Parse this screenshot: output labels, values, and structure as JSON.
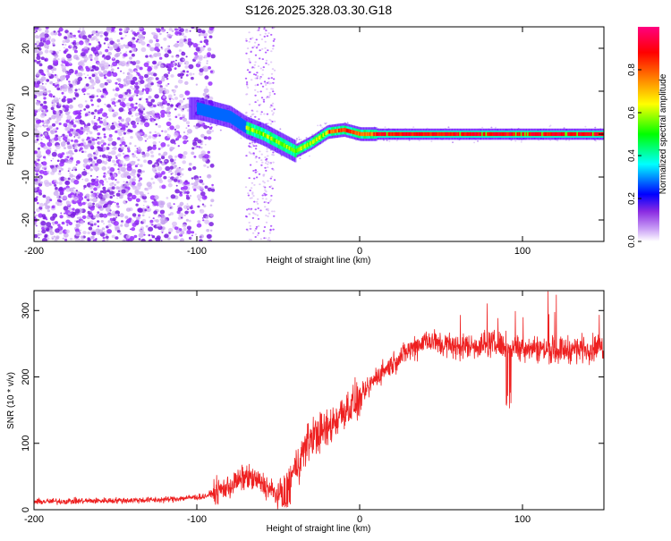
{
  "title": "S126.2025.328.03.30.G18",
  "chart_data": [
    {
      "type": "heatmap",
      "xlabel": "Height of straight line (km)",
      "ylabel": "Frequency (Hz)",
      "xlim": [
        -200,
        150
      ],
      "ylim": [
        -25,
        25
      ],
      "xticks": [
        -200,
        -100,
        0,
        100
      ],
      "yticks": [
        -20,
        -10,
        0,
        10,
        20
      ],
      "xtick_labels": [
        "-200",
        "-100",
        "0",
        "100"
      ],
      "ytick_labels": [
        "-20",
        "-10",
        "0",
        "10",
        "20"
      ],
      "colorbar": {
        "label": "Normalized spectral amplitude",
        "range": [
          0,
          1
        ],
        "ticks": [
          0.0,
          0.2,
          0.4,
          0.6,
          0.8
        ],
        "tick_labels": [
          "0.0",
          "0.2",
          "0.4",
          "0.6",
          "0.8"
        ],
        "colors": [
          "#ffffff",
          "#8a2be2",
          "#0000ff",
          "#00ffff",
          "#00ff00",
          "#ffff00",
          "#ff8000",
          "#ff0000",
          "#ff0080"
        ]
      },
      "ridge_center_hz": [
        {
          "x": -100,
          "y": 6
        },
        {
          "x": -80,
          "y": 4
        },
        {
          "x": -70,
          "y": 1.5
        },
        {
          "x": -60,
          "y": 0
        },
        {
          "x": -50,
          "y": -2
        },
        {
          "x": -40,
          "y": -4
        },
        {
          "x": -30,
          "y": -2
        },
        {
          "x": -20,
          "y": 0.5
        },
        {
          "x": -10,
          "y": 1
        },
        {
          "x": 0,
          "y": 0
        },
        {
          "x": 10,
          "y": 0
        },
        {
          "x": 150,
          "y": 0
        }
      ]
    },
    {
      "type": "line",
      "xlabel": "Height of straight line (km)",
      "ylabel": "SNR (10 * v/v)",
      "xlim": [
        -200,
        150
      ],
      "ylim": [
        0,
        330
      ],
      "xticks": [
        -200,
        -100,
        0,
        100
      ],
      "yticks": [
        0,
        100,
        200,
        300
      ],
      "xtick_labels": [
        "-200",
        "-100",
        "0",
        "100"
      ],
      "ytick_labels": [
        "0",
        "100",
        "200",
        "300"
      ],
      "series": [
        {
          "name": "SNR",
          "color": "#ee2020",
          "trend": [
            {
              "x": -200,
              "y": 12
            },
            {
              "x": -120,
              "y": 15
            },
            {
              "x": -95,
              "y": 20
            },
            {
              "x": -80,
              "y": 35
            },
            {
              "x": -70,
              "y": 50
            },
            {
              "x": -60,
              "y": 40
            },
            {
              "x": -50,
              "y": 20
            },
            {
              "x": -40,
              "y": 60
            },
            {
              "x": -30,
              "y": 110
            },
            {
              "x": -20,
              "y": 120
            },
            {
              "x": -10,
              "y": 150
            },
            {
              "x": 0,
              "y": 165
            },
            {
              "x": 10,
              "y": 200
            },
            {
              "x": 20,
              "y": 220
            },
            {
              "x": 30,
              "y": 240
            },
            {
              "x": 40,
              "y": 255
            },
            {
              "x": 60,
              "y": 245
            },
            {
              "x": 80,
              "y": 250
            },
            {
              "x": 100,
              "y": 245
            },
            {
              "x": 120,
              "y": 240
            },
            {
              "x": 150,
              "y": 245
            }
          ]
        }
      ]
    }
  ]
}
